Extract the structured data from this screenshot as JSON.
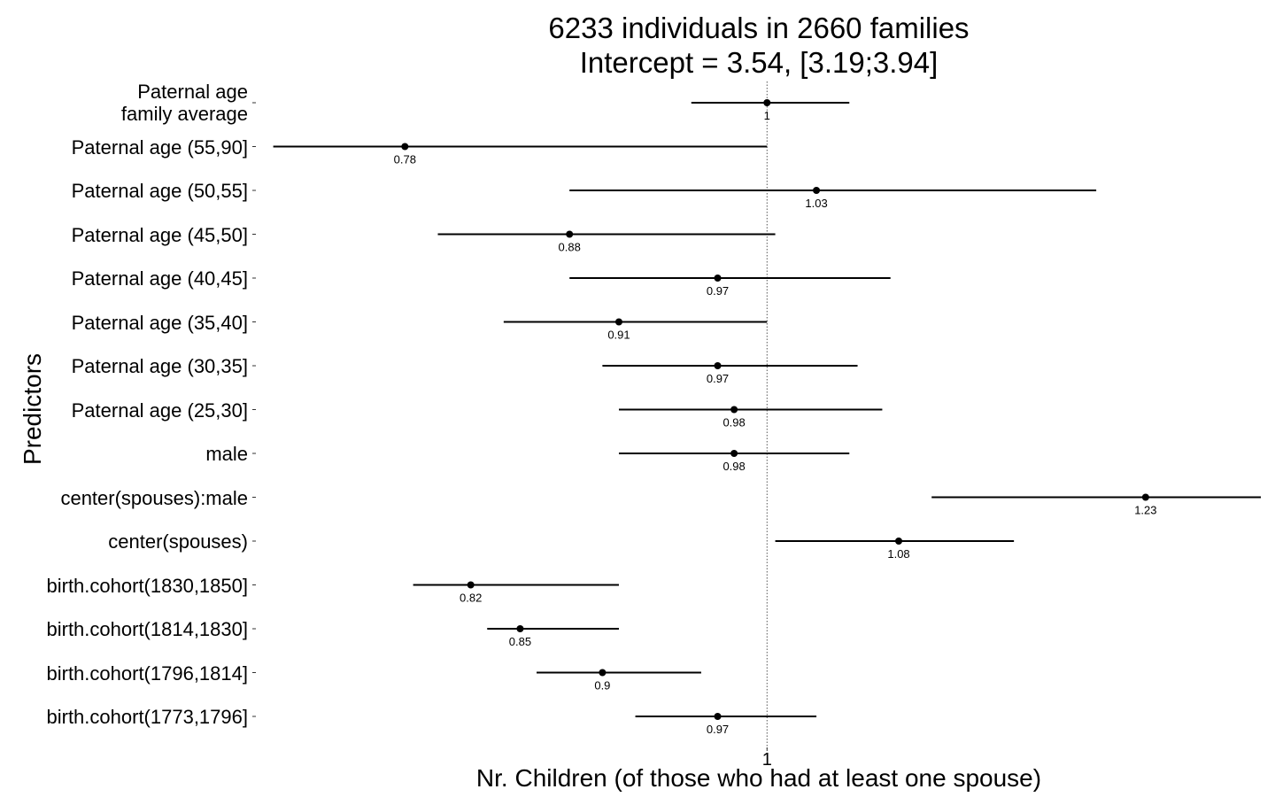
{
  "chart_data": {
    "type": "forest",
    "title": "6233 individuals in 2660 families",
    "subtitle": "Intercept = 3.54, [3.19;3.94]",
    "xlabel": "Nr. Children (of those who had at least one spouse)",
    "ylabel": "Predictors",
    "x_ticks": [
      1
    ],
    "x_tick_labels": [
      "1"
    ],
    "xlim": [
      0.69,
      1.3
    ],
    "reference_line": 1,
    "grid": false,
    "series": [
      {
        "labels": [
          "Paternal age\nfamily average",
          "Paternal age (55,90]",
          "Paternal age (50,55]",
          "Paternal age (45,50]",
          "Paternal age (40,45]",
          "Paternal age (35,40]",
          "Paternal age (30,35]",
          "Paternal age (25,30]",
          "male",
          "center(spouses):male",
          "center(spouses)",
          "birth.cohort(1830,1850]",
          "birth.cohort(1814,1830]",
          "birth.cohort(1796,1814]",
          "birth.cohort(1773,1796]"
        ],
        "estimates": [
          1.0,
          0.78,
          1.03,
          0.88,
          0.97,
          0.91,
          0.97,
          0.98,
          0.98,
          1.23,
          1.08,
          0.82,
          0.85,
          0.9,
          0.97
        ],
        "estimate_labels": [
          "1",
          "0.78",
          "1.03",
          "0.88",
          "0.97",
          "0.91",
          "0.97",
          "0.98",
          "0.98",
          "1.23",
          "1.08",
          "0.82",
          "0.85",
          "0.9",
          "0.97"
        ],
        "lower": [
          0.954,
          0.7,
          0.88,
          0.8,
          0.88,
          0.84,
          0.9,
          0.91,
          0.91,
          1.1,
          1.005,
          0.785,
          0.83,
          0.86,
          0.92
        ],
        "upper": [
          1.05,
          1.0,
          1.2,
          1.005,
          1.075,
          1.0,
          1.055,
          1.07,
          1.05,
          1.3,
          1.15,
          0.91,
          0.91,
          0.96,
          1.03
        ]
      }
    ]
  }
}
